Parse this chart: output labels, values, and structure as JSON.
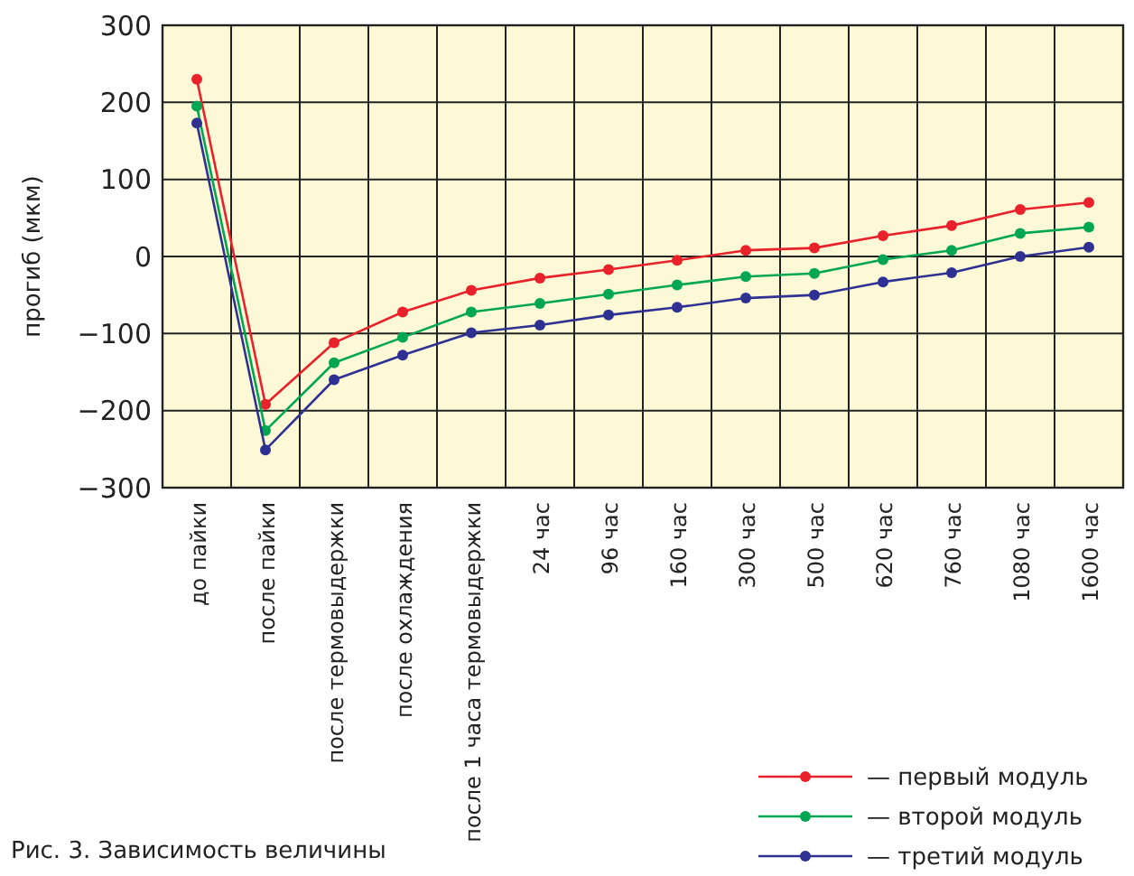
{
  "chart_data": {
    "type": "line",
    "ylabel": "прогиб (мкм)",
    "categories": [
      "до пайки",
      "после пайки",
      "после термовыдержки",
      "после охлаждения",
      "после 1 часа  термовыдержки",
      "24 час",
      "96 час",
      "160 час",
      "300 час",
      "500 час",
      "620 час",
      "760 час",
      "1080 час",
      "1600 час"
    ],
    "series": [
      {
        "name": "— первый модуль",
        "color": "#e8212b",
        "values": [
          230,
          -192,
          -112,
          -72,
          -44,
          -28,
          -17,
          -5,
          8,
          11,
          27,
          40,
          61,
          70
        ]
      },
      {
        "name": "— второй модуль",
        "color": "#00a651",
        "values": [
          195,
          -226,
          -138,
          -105,
          -72,
          -61,
          -49,
          -37,
          -26,
          -22,
          -4,
          8,
          30,
          38
        ]
      },
      {
        "name": "— третий модуль",
        "color": "#2e3192",
        "values": [
          173,
          -251,
          -160,
          -128,
          -99,
          -89,
          -76,
          -66,
          -54,
          -50,
          -33,
          -21,
          0,
          12
        ]
      }
    ],
    "ylim": [
      -300,
      300
    ],
    "yticks": [
      {
        "value": -300,
        "label": "−300"
      },
      {
        "value": -200,
        "label": "−200"
      },
      {
        "value": -100,
        "label": "−100"
      },
      0,
      100,
      200,
      300
    ],
    "grid": true,
    "legend": "bottom right",
    "marker": "circle",
    "line_style": "solid",
    "annotations": [
      "Рис. 3. Зависимость величины"
    ]
  }
}
